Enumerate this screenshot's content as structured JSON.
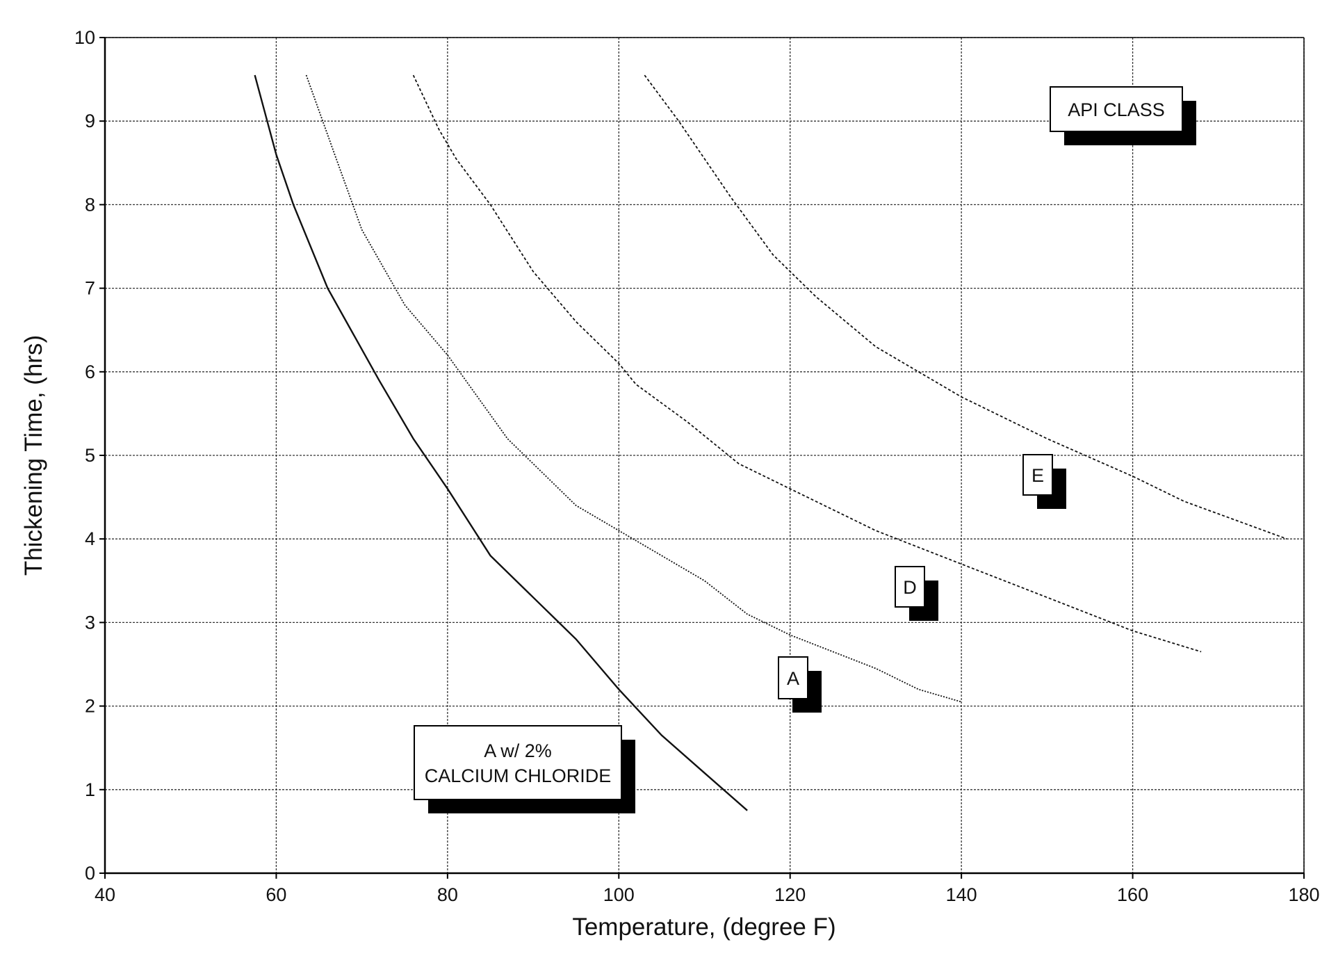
{
  "chart_data": {
    "type": "line",
    "title": "",
    "xlabel": "Temperature, (degree F)",
    "ylabel": "Thickening Time, (hrs)",
    "xlim": [
      40,
      180
    ],
    "ylim": [
      0,
      10
    ],
    "xticks": [
      "40",
      "60",
      "80",
      "100",
      "120",
      "140",
      "160",
      "180"
    ],
    "yticks": [
      "0",
      "1",
      "2",
      "3",
      "4",
      "5",
      "6",
      "7",
      "8",
      "9",
      "10"
    ],
    "grid": true,
    "legend_title": "API CLASS",
    "series": [
      {
        "name": "A w/ 2% CALCIUM CHLORIDE",
        "label_lines": [
          "A w/ 2%",
          "CALCIUM CHLORIDE"
        ],
        "style": "solid",
        "x": [
          57.5,
          60,
          62,
          66,
          72,
          76,
          80,
          85,
          90,
          95,
          100,
          105,
          110,
          115
        ],
        "y": [
          9.55,
          8.6,
          8.0,
          7.0,
          5.9,
          5.2,
          4.6,
          3.8,
          3.3,
          2.8,
          2.2,
          1.65,
          1.2,
          0.75
        ]
      },
      {
        "name": "A",
        "style": "dotted",
        "x": [
          63.5,
          67,
          70,
          75,
          80,
          87,
          95,
          100,
          110,
          115,
          120,
          130,
          135,
          140
        ],
        "y": [
          9.55,
          8.55,
          7.7,
          6.8,
          6.2,
          5.2,
          4.4,
          4.1,
          3.5,
          3.1,
          2.85,
          2.45,
          2.2,
          2.05
        ]
      },
      {
        "name": "D",
        "style": "dashed",
        "x": [
          76,
          79,
          81,
          85,
          90,
          95,
          100,
          102,
          108,
          114,
          120,
          130,
          140,
          150,
          160,
          168
        ],
        "y": [
          9.55,
          8.9,
          8.55,
          8.0,
          7.2,
          6.6,
          6.1,
          5.85,
          5.4,
          4.9,
          4.6,
          4.1,
          3.7,
          3.3,
          2.9,
          2.65
        ]
      },
      {
        "name": "E",
        "style": "dashed",
        "x": [
          103,
          107,
          113,
          118,
          123,
          130,
          135,
          140,
          150,
          160,
          166,
          178
        ],
        "y": [
          9.55,
          9.0,
          8.1,
          7.4,
          6.9,
          6.3,
          6.0,
          5.7,
          5.2,
          4.75,
          4.45,
          4.0
        ]
      }
    ]
  }
}
